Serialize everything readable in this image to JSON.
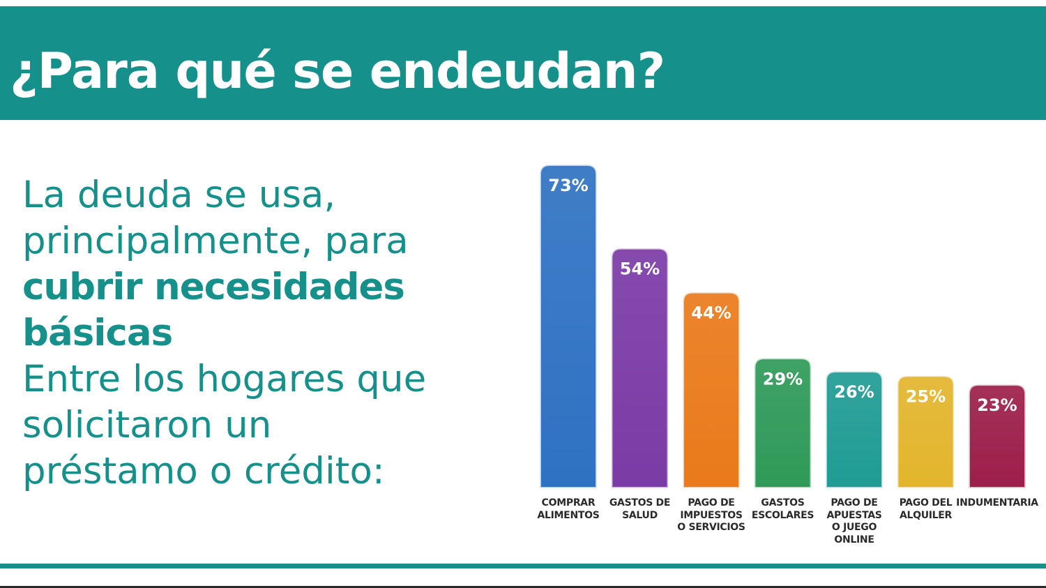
{
  "header": {
    "title": "¿Para qué se endeudan?"
  },
  "intro": {
    "line1": "La deuda se usa,",
    "line2": "principalmente, para",
    "line3": "cubrir necesidades",
    "line4": "básicas",
    "line5": "Entre los hogares que",
    "line6": "solicitaron un",
    "line7": "préstamo o crédito:"
  },
  "colors": {
    "teal": "#16908b",
    "bars": [
      "#2f72c2",
      "#7b3ba6",
      "#ea7a1b",
      "#2f9a58",
      "#1f9c94",
      "#e3b52d",
      "#9c1f4a"
    ]
  },
  "chart_data": {
    "type": "bar",
    "categories": [
      "COMPRAR\nALIMENTOS",
      "GASTOS DE\nSALUD",
      "PAGO DE\nIMPUESTOS\nO SERVICIOS",
      "GASTOS\nESCOLARES",
      "PAGO DE\nAPUESTAS\nO JUEGO\nONLINE",
      "PAGO DEL\nALQUILER",
      "INDUMENTARIA"
    ],
    "values": [
      73,
      54,
      44,
      29,
      26,
      25,
      23
    ],
    "data_labels": [
      "73%",
      "54%",
      "44%",
      "29%",
      "26%",
      "25%",
      "23%"
    ],
    "ylim": [
      0,
      73
    ],
    "grid": false,
    "legend": "none"
  }
}
